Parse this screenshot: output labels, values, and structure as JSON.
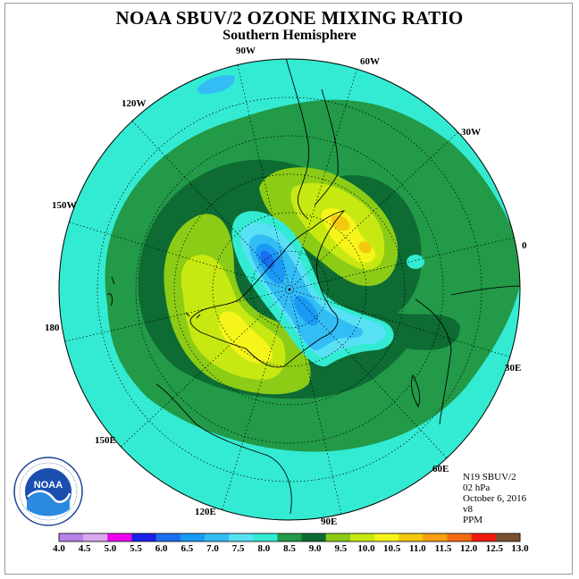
{
  "title": "NOAA SBUV/2 OZONE MIXING RATIO",
  "subtitle": "Southern Hemisphere",
  "logo": {
    "text": "NOAA",
    "ring_text": "NATIONAL OCEANIC AND ATMOSPHERIC ADMINISTRATION · U.S. DEPARTMENT OF COMMERCE"
  },
  "info": {
    "satellite": "N19 SBUV/2",
    "level": "02 hPa",
    "date": "October 6, 2016",
    "version": "v8",
    "units": "PPM"
  },
  "map_labels": {
    "lon_90w": "90W",
    "lon_60w": "60W",
    "lon_30w": "30W",
    "lon_0": "0",
    "lon_30e": "30E",
    "lon_60e": "60E",
    "lon_90e": "90E",
    "lon_120e": "120E",
    "lon_150e": "150E",
    "lon_180": "180",
    "lon_150w": "150W",
    "lon_120w": "120W"
  },
  "colorbar": {
    "ticks": [
      "4.0",
      "4.5",
      "5.0",
      "5.5",
      "6.0",
      "6.5",
      "7.0",
      "7.5",
      "8.0",
      "8.5",
      "9.0",
      "9.5",
      "10.0",
      "10.5",
      "11.0",
      "11.5",
      "12.0",
      "12.5",
      "13.0"
    ],
    "colors": [
      "#b583e8",
      "#dca8f0",
      "#f000f0",
      "#1a20e8",
      "#1a6ef0",
      "#1a9af5",
      "#33bdf5",
      "#58e0f5",
      "#33ebd2",
      "#229a48",
      "#0d6b33",
      "#8ccc16",
      "#c8e812",
      "#f5f51a",
      "#f5c810",
      "#f5a010",
      "#f56a10",
      "#f01a10",
      "#7a5030"
    ]
  },
  "colors": {
    "bg_cyan": "#33ebd2",
    "green_8": "#229a48",
    "dark_green": "#0d6b33",
    "lime": "#8ccc16",
    "yellow_green": "#c8e812",
    "yellow": "#f5f51a",
    "amber": "#f5c810",
    "light_blue": "#58e0f5",
    "sky": "#33bdf5",
    "blue": "#1a9af5",
    "deep_blue": "#1a6ef0"
  }
}
